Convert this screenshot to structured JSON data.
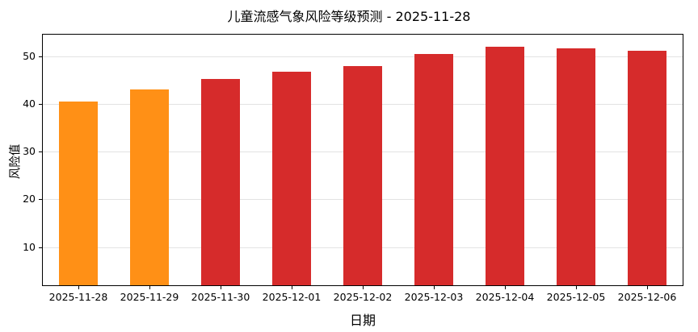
{
  "chart_data": {
    "type": "bar",
    "title": "儿童流感气象风险等级预测 - 2025-11-28",
    "xlabel": "日期",
    "ylabel": "风险值",
    "categories": [
      "2025-11-28",
      "2025-11-29",
      "2025-11-30",
      "2025-12-01",
      "2025-12-02",
      "2025-12-03",
      "2025-12-04",
      "2025-12-05",
      "2025-12-06"
    ],
    "values": [
      40.5,
      43.0,
      45.2,
      46.7,
      48.0,
      50.5,
      52.0,
      51.7,
      51.2
    ],
    "bar_colors": [
      "#ff9016",
      "#ff9016",
      "#d62b2b",
      "#d62b2b",
      "#d62b2b",
      "#d62b2b",
      "#d62b2b",
      "#d62b2b",
      "#d62b2b"
    ],
    "color_legend": {
      "orange": "#ff9016",
      "red": "#d62b2b"
    },
    "yticks": [
      10,
      20,
      30,
      40,
      50
    ],
    "ylim": [
      2,
      54.5
    ],
    "grid": true,
    "legend_position": "none"
  }
}
